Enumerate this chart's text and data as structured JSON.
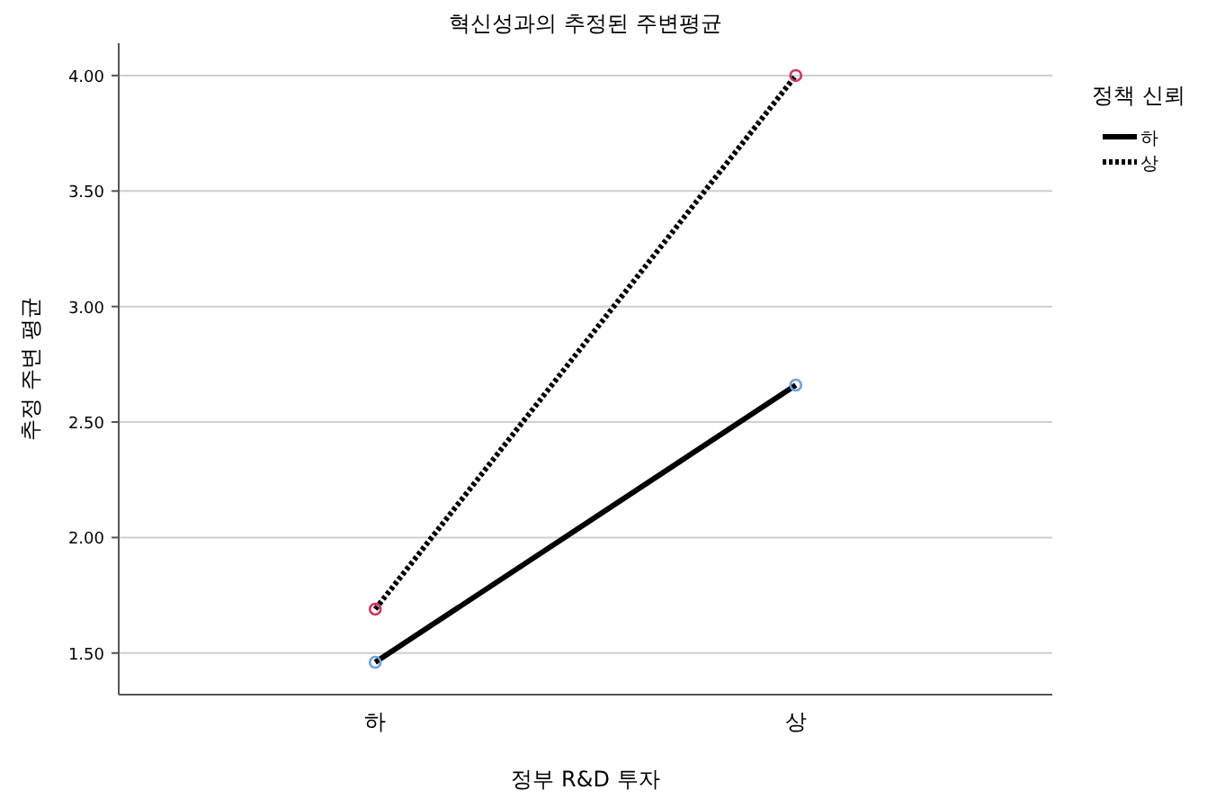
{
  "chart_data": {
    "type": "line",
    "title": "혁신성과의 추정된 주변평균",
    "xlabel": "정부 R&D 투자",
    "ylabel": "추정 주변 평균",
    "legend_title": "정책 신뢰",
    "categories": [
      "하",
      "상"
    ],
    "series": [
      {
        "name": "하",
        "color": "#000000",
        "colors": [
          "#6fa0dc",
          "#6fa0dc"
        ],
        "line_style": "solid",
        "values": [
          1.46,
          2.66
        ]
      },
      {
        "name": "상",
        "color": "#000000",
        "colors": [
          "#d0355a",
          "#d0355a"
        ],
        "line_style": "dotted",
        "values": [
          1.69,
          4.0
        ]
      }
    ],
    "ylim": [
      1.32,
      4.14
    ],
    "yticks": [
      {
        "value": 1.5,
        "label": "1.50"
      },
      {
        "value": 2,
        "label": "2.00"
      },
      {
        "value": 2.5,
        "label": "2.50"
      },
      {
        "value": 3,
        "label": "3.00"
      },
      {
        "value": 3.5,
        "label": "3.50"
      },
      {
        "value": 4,
        "label": "4.00"
      }
    ],
    "grid": "y",
    "legend": "top right",
    "marker": "circle"
  }
}
